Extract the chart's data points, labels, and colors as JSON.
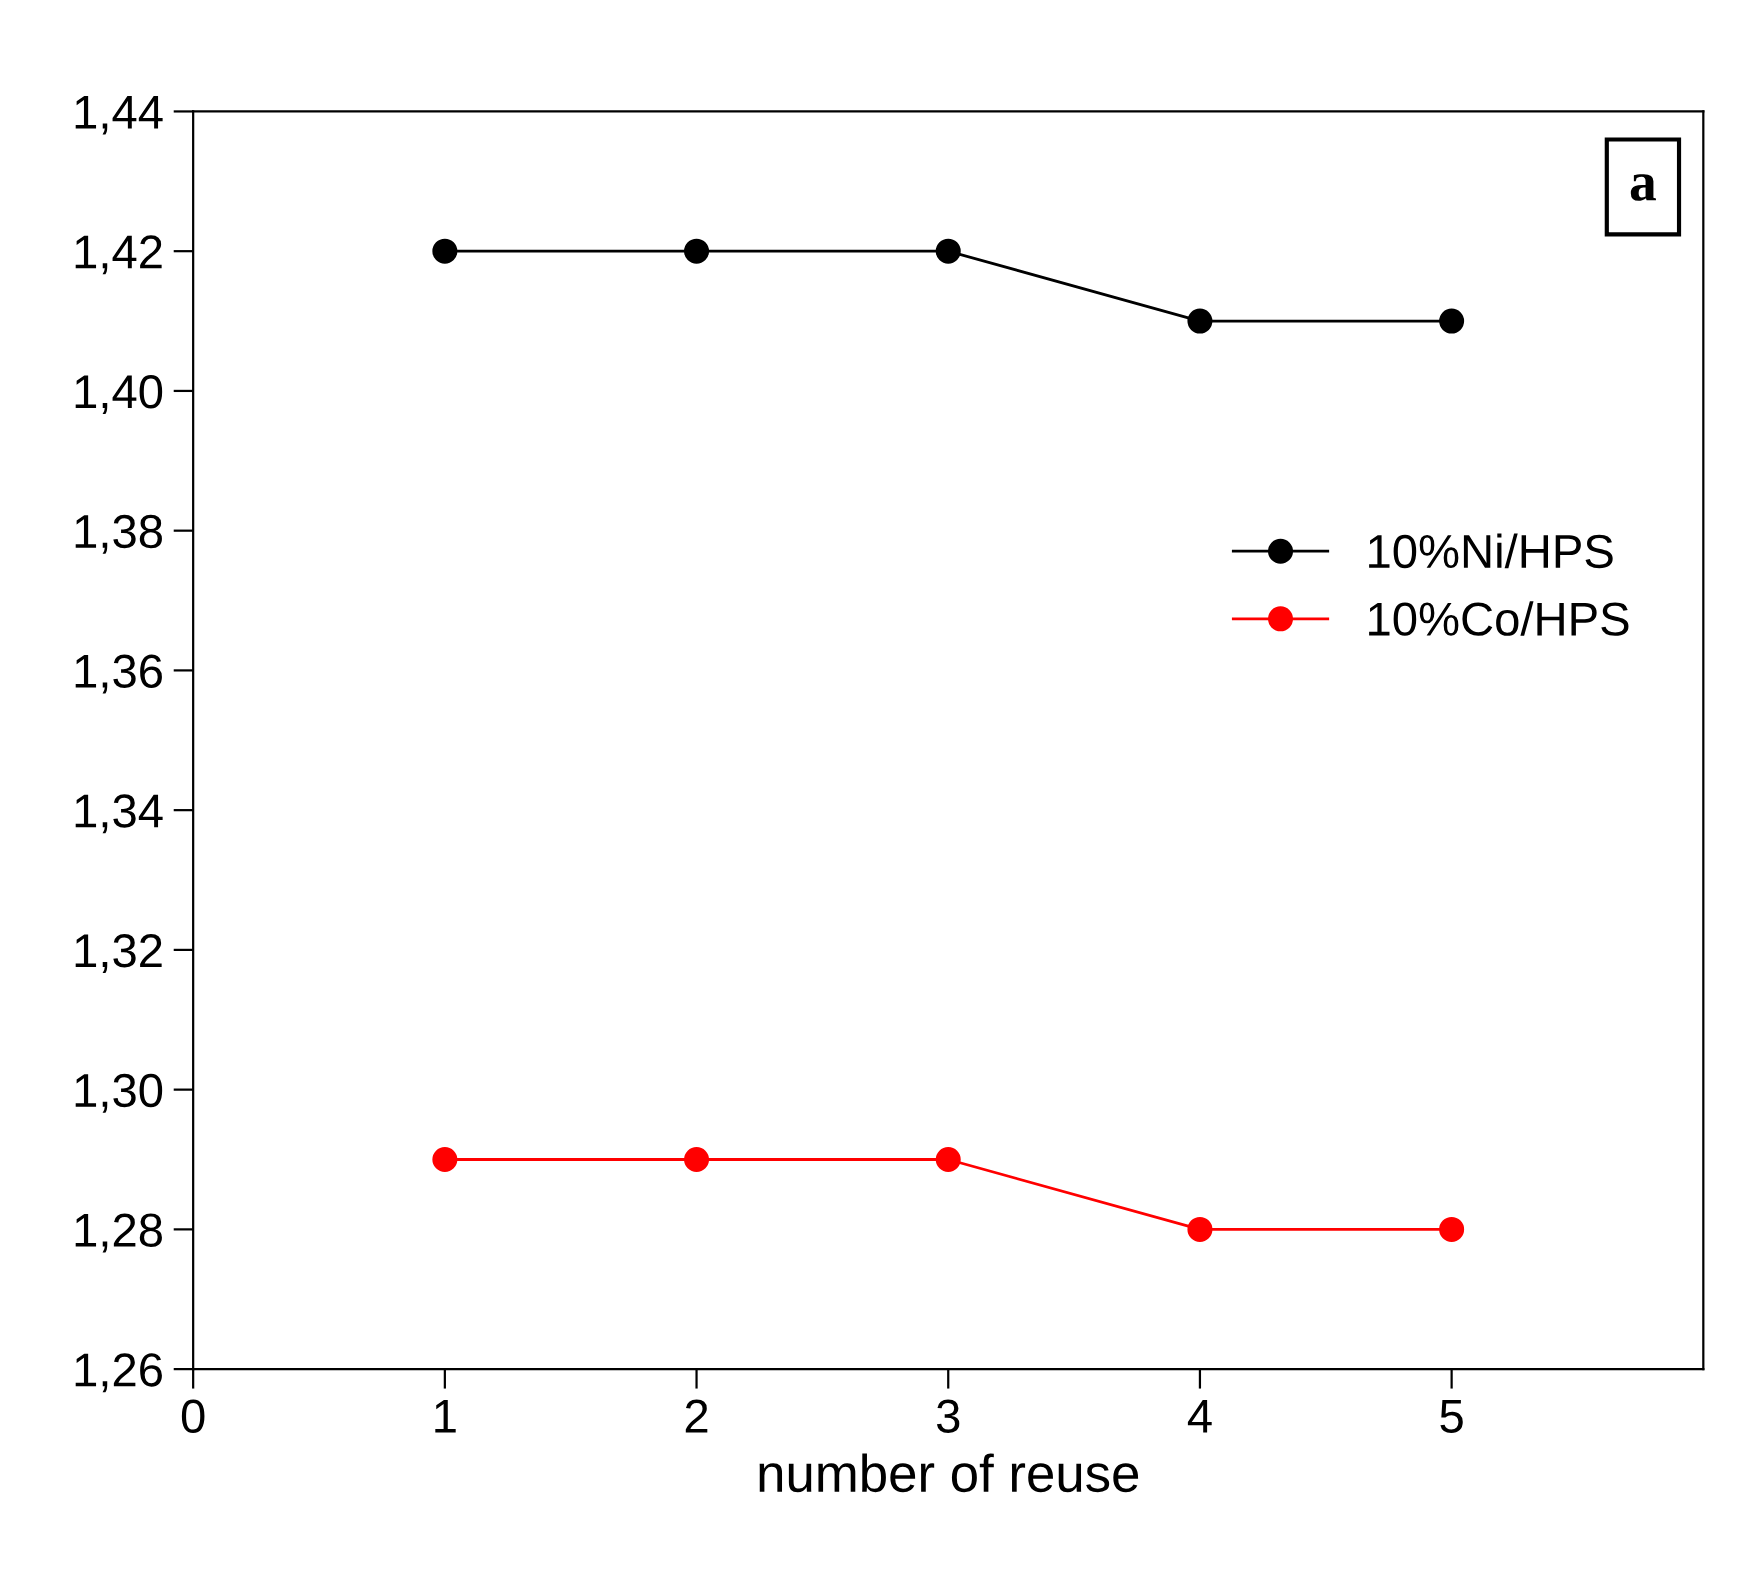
{
  "chart_data": {
    "type": "line",
    "xlabel": "number of reuse",
    "x": [
      1,
      2,
      3,
      4,
      5
    ],
    "series": [
      {
        "name": "10%Ni/HPS",
        "color": "#000000",
        "values": [
          1.42,
          1.42,
          1.42,
          1.41,
          1.41
        ]
      },
      {
        "name": "10%Co/HPS",
        "color": "#ff0000",
        "values": [
          1.29,
          1.29,
          1.29,
          1.28,
          1.28
        ]
      }
    ],
    "xlim": [
      0,
      6
    ],
    "xticks": [
      0,
      1,
      2,
      3,
      4,
      5
    ],
    "ylim": [
      1.26,
      1.44
    ],
    "yticks": [
      {
        "value": 1.26,
        "label": "1,26"
      },
      {
        "value": 1.28,
        "label": "1,28"
      },
      {
        "value": 1.3,
        "label": "1,30"
      },
      {
        "value": 1.32,
        "label": "1,32"
      },
      {
        "value": 1.34,
        "label": "1,34"
      },
      {
        "value": 1.36,
        "label": "1,36"
      },
      {
        "value": 1.38,
        "label": "1,38"
      },
      {
        "value": 1.4,
        "label": "1,40"
      },
      {
        "value": 1.42,
        "label": "1,42"
      },
      {
        "value": 1.44,
        "label": "1,44"
      }
    ],
    "annotations": [
      "a"
    ],
    "marker": "circle",
    "line_style": "solid",
    "grid": false,
    "legend": "right"
  }
}
